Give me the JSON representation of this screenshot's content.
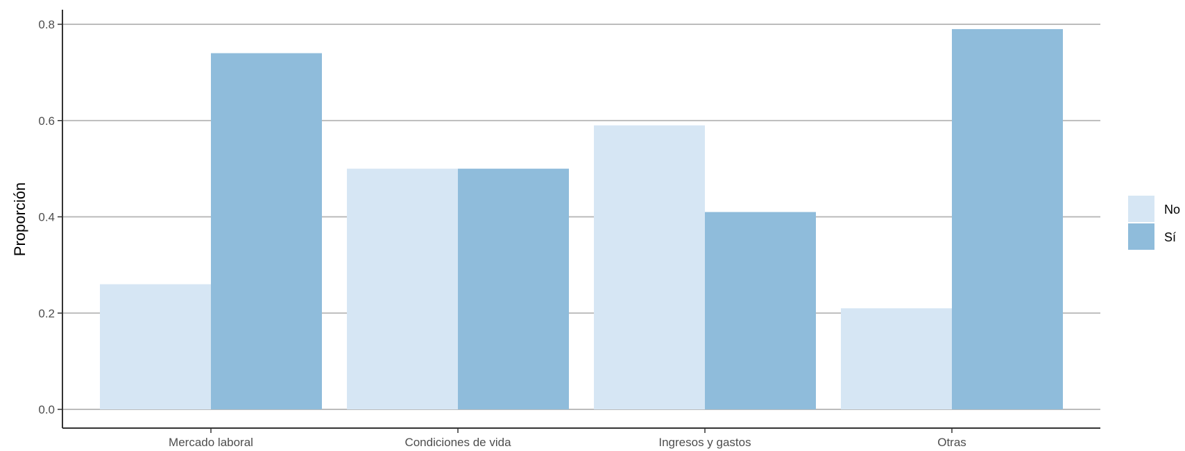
{
  "chart_data": {
    "type": "bar",
    "title": "",
    "xlabel": "",
    "ylabel": "Proporción",
    "ylim": [
      0,
      0.8
    ],
    "yticks": [
      0.0,
      0.2,
      0.4,
      0.6,
      0.8
    ],
    "ytick_labels": [
      "0.0",
      "0.2",
      "0.4",
      "0.6",
      "0.8"
    ],
    "categories": [
      "Mercado laboral",
      "Condiciones de vida",
      "Ingresos y gastos",
      "Otras"
    ],
    "series": [
      {
        "name": "No",
        "color": "#d6e6f4",
        "values": [
          0.26,
          0.5,
          0.59,
          0.21
        ]
      },
      {
        "name": "Sí",
        "color": "#8fbcdb",
        "values": [
          0.74,
          0.5,
          0.41,
          0.79
        ]
      }
    ],
    "grid": "horizontal-major",
    "legend_position": "right"
  }
}
